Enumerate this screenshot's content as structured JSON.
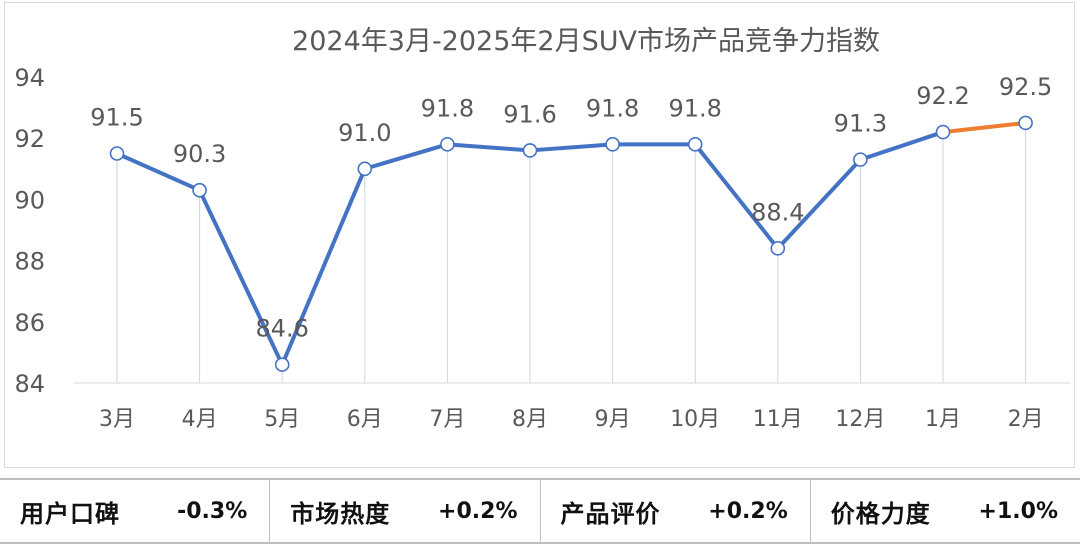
{
  "chart_data": {
    "type": "line",
    "title": "2024年3月-2025年2月SUV市场产品竞争力指数",
    "categories": [
      "3月",
      "4月",
      "5月",
      "6月",
      "7月",
      "8月",
      "9月",
      "10月",
      "11月",
      "12月",
      "1月",
      "2月"
    ],
    "series": [
      {
        "values": [
          91.5,
          90.3,
          84.6,
          91.0,
          91.8,
          91.6,
          91.8,
          91.8,
          88.4,
          91.3,
          92.2,
          92.5
        ]
      }
    ],
    "data_labels": [
      "91.5",
      "90.3",
      "84.6",
      "91.0",
      "91.8",
      "91.6",
      "91.8",
      "91.8",
      "88.4",
      "91.3",
      "92.2",
      "92.5"
    ],
    "y_ticks": [
      "84",
      "86",
      "88",
      "90",
      "92",
      "94"
    ],
    "ylim": [
      84,
      94
    ],
    "highlight_last_segment": true,
    "grid": false,
    "colors": {
      "line": "#4472C4",
      "highlight": "#ED7D31",
      "drop_line": "#c9d6ea",
      "text": "#595959"
    }
  },
  "metrics": [
    {
      "name": "用户口碑",
      "value": "-0.3%"
    },
    {
      "name": "市场热度",
      "value": "+0.2%"
    },
    {
      "name": "产品评价",
      "value": "+0.2%"
    },
    {
      "name": "价格力度",
      "value": "+1.0%"
    }
  ]
}
